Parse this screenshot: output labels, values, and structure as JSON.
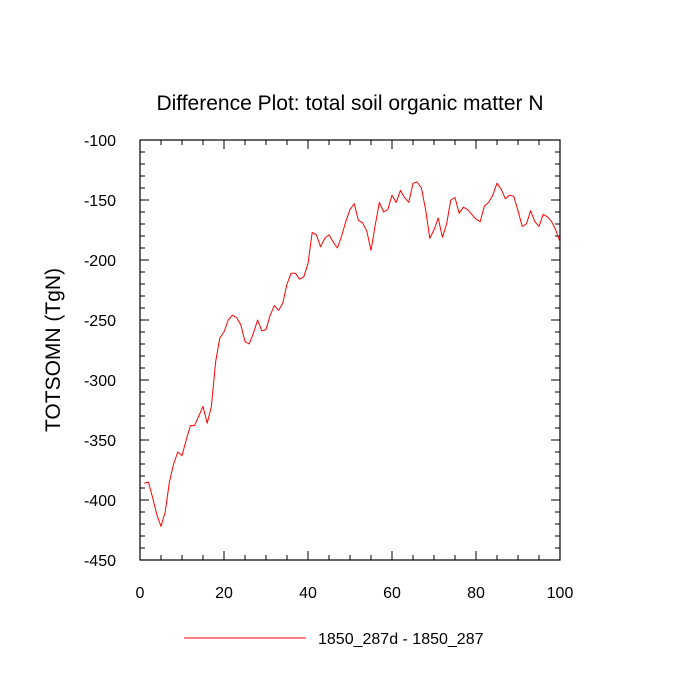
{
  "chart_data": {
    "type": "line",
    "title": "Difference Plot: total soil organic matter N",
    "xlabel": "",
    "ylabel": "TOTSOMN  (TgN)",
    "xlim": [
      0,
      100
    ],
    "ylim": [
      -450,
      -100
    ],
    "x_ticks": [
      0,
      20,
      40,
      60,
      80,
      100
    ],
    "y_ticks": [
      -450,
      -400,
      -350,
      -300,
      -250,
      -200,
      -150,
      -100
    ],
    "x_tick_labels": [
      "0",
      "20",
      "40",
      "60",
      "80",
      "100"
    ],
    "y_tick_labels": [
      "-450",
      "-400",
      "-350",
      "-300",
      "-250",
      "-200",
      "-150",
      "-100"
    ],
    "legend_position": "bottom-center",
    "series": [
      {
        "name": "1850_287d - 1850_287",
        "color": "#ff0000",
        "x": [
          1,
          2,
          3,
          4,
          5,
          6,
          7,
          8,
          9,
          10,
          11,
          12,
          13,
          14,
          15,
          16,
          17,
          18,
          19,
          20,
          21,
          22,
          23,
          24,
          25,
          26,
          27,
          28,
          29,
          30,
          31,
          32,
          33,
          34,
          35,
          36,
          37,
          38,
          39,
          40,
          41,
          42,
          43,
          44,
          45,
          46,
          47,
          48,
          49,
          50,
          51,
          52,
          53,
          54,
          55,
          56,
          57,
          58,
          59,
          60,
          61,
          62,
          63,
          64,
          65,
          66,
          67,
          68,
          69,
          70,
          71,
          72,
          73,
          74,
          75,
          76,
          77,
          78,
          79,
          80,
          81,
          82,
          83,
          84,
          85,
          86,
          87,
          88,
          89,
          90,
          91,
          92,
          93,
          94,
          95,
          96,
          97,
          98,
          99,
          100
        ],
        "values": [
          -386,
          -385,
          -398,
          -412,
          -422,
          -410,
          -385,
          -370,
          -360,
          -363,
          -350,
          -338,
          -338,
          -330,
          -322,
          -336,
          -322,
          -285,
          -265,
          -260,
          -250,
          -246,
          -248,
          -254,
          -268,
          -270,
          -261,
          -250,
          -259,
          -258,
          -246,
          -238,
          -242,
          -236,
          -220,
          -211,
          -211,
          -216,
          -214,
          -203,
          -177,
          -179,
          -189,
          -182,
          -179,
          -185,
          -190,
          -180,
          -168,
          -158,
          -153,
          -167,
          -169,
          -176,
          -192,
          -171,
          -152,
          -160,
          -158,
          -146,
          -152,
          -142,
          -148,
          -152,
          -136,
          -135,
          -140,
          -158,
          -182,
          -175,
          -165,
          -181,
          -170,
          -150,
          -148,
          -161,
          -156,
          -158,
          -162,
          -166,
          -168,
          -155,
          -152,
          -146,
          -136,
          -141,
          -149,
          -146,
          -147,
          -159,
          -172,
          -170,
          -159,
          -168,
          -172,
          -162,
          -164,
          -168,
          -175,
          -185
        ]
      }
    ]
  }
}
